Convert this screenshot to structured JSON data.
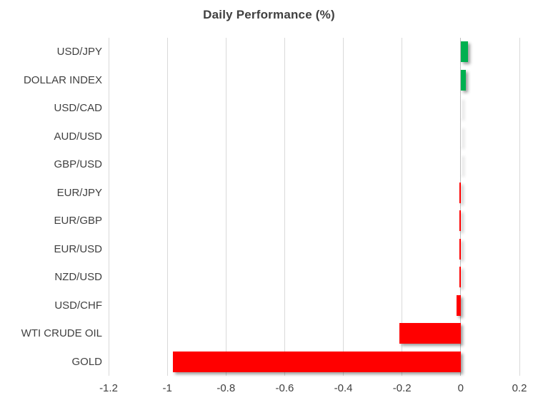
{
  "chart_data": {
    "type": "bar",
    "orientation": "horizontal",
    "title": "Daily Performance (%)",
    "categories": [
      "USD/JPY",
      "DOLLAR INDEX",
      "USD/CAD",
      "AUD/USD",
      "GBP/USD",
      "EUR/JPY",
      "EUR/GBP",
      "EUR/USD",
      "NZD/USD",
      "USD/CHF",
      "WTI CRUDE OIL",
      "GOLD"
    ],
    "values": [
      0.024,
      0.017,
      0.0,
      0.0,
      0.0,
      -0.005,
      -0.005,
      -0.005,
      -0.005,
      -0.015,
      -0.21,
      -0.98
    ],
    "xlabel": "",
    "ylabel": "",
    "xlim": [
      -1.2,
      0.2
    ],
    "xticks": [
      -1.2,
      -1,
      -0.8,
      -0.6,
      -0.4,
      -0.2,
      0,
      0.2
    ],
    "xtick_labels": [
      "-1.2",
      "-1",
      "-0.8",
      "-0.6",
      "-0.4",
      "-0.2",
      "0",
      "0.2"
    ],
    "grid": "vertical-gridlines",
    "legend": "none",
    "colors": {
      "positive": "#00B050",
      "negative": "#FF0000",
      "gridline": "#D9D9D9",
      "zero_axis": "#BFBFBF",
      "text": "#404040",
      "background": "#FFFFFF"
    }
  }
}
